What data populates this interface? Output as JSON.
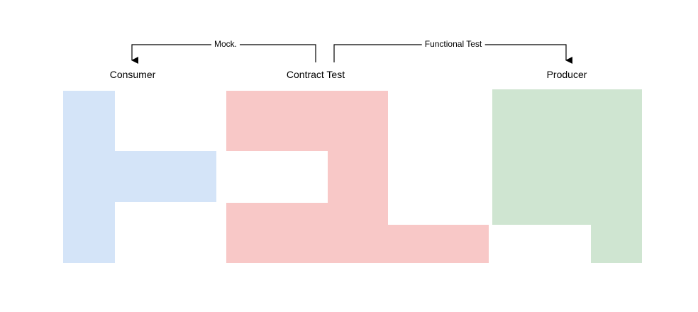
{
  "nodes": {
    "consumer": {
      "label": "Consumer",
      "color": "#d4e4f8"
    },
    "contract_test": {
      "label": "Contract Test",
      "color": "#f8c8c7"
    },
    "producer": {
      "label": "Producer",
      "color": "#cfe5d1"
    }
  },
  "edges": {
    "mock": {
      "label": "Mock.",
      "from": "Contract Test",
      "to": "Consumer"
    },
    "functional_test": {
      "label": "Functional Test",
      "from": "Contract Test",
      "to": "Producer"
    }
  },
  "line_color": "#000000"
}
